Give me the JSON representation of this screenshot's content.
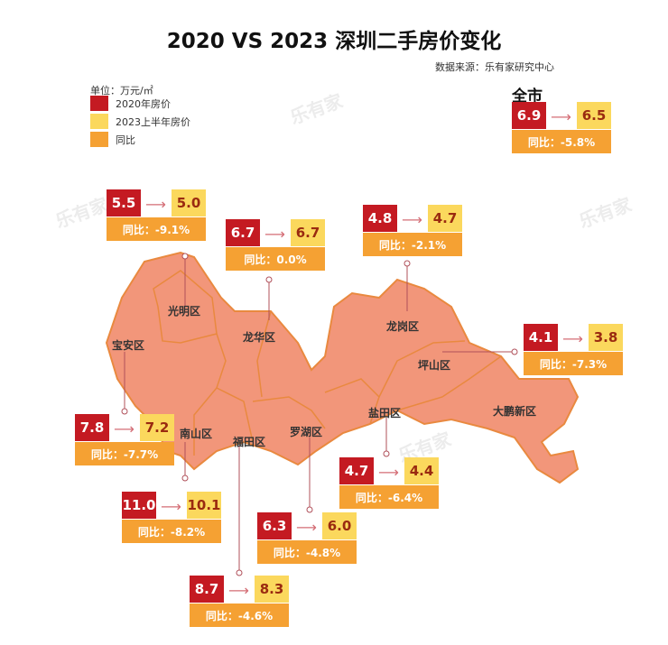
{
  "title": "2020 VS 2023 深圳二手房价变化",
  "source": "数据来源：乐有家研究中心",
  "unit": "单位：万元/㎡",
  "watermark": "乐有家",
  "legend": [
    {
      "label": "2020年房价",
      "color": "#c41a22"
    },
    {
      "label": "2023上半年房价",
      "color": "#fbd85d"
    },
    {
      "label": "同比",
      "color": "#f5a133"
    }
  ],
  "city": {
    "label": "全市",
    "p2020": "6.9",
    "p2023": "6.5",
    "yoy": "同比：-5.8%"
  },
  "districts": [
    {
      "name": "光明区",
      "p2020": "5.5",
      "p2023": "5.0",
      "yoy": "同比：-9.1%"
    },
    {
      "name": "龙华区",
      "p2020": "6.7",
      "p2023": "6.7",
      "yoy": "同比：0.0%"
    },
    {
      "name": "龙岗区",
      "p2020": "4.8",
      "p2023": "4.7",
      "yoy": "同比：-2.1%"
    },
    {
      "name": "坪山区",
      "p2020": "4.1",
      "p2023": "3.8",
      "yoy": "同比：-7.3%"
    },
    {
      "name": "宝安区",
      "p2020": "7.8",
      "p2023": "7.2",
      "yoy": "同比：-7.7%"
    },
    {
      "name": "盐田区",
      "p2020": "4.7",
      "p2023": "4.4",
      "yoy": "同比：-6.4%"
    },
    {
      "name": "南山区",
      "p2020": "11.0",
      "p2023": "10.1",
      "yoy": "同比：-8.2%"
    },
    {
      "name": "罗湖区",
      "p2020": "6.3",
      "p2023": "6.0",
      "yoy": "同比：-4.8%"
    },
    {
      "name": "福田区",
      "p2020": "8.7",
      "p2023": "8.3",
      "yoy": "同比：-4.6%"
    },
    {
      "name": "大鹏新区"
    }
  ],
  "map_fill": "#f2967a"
}
